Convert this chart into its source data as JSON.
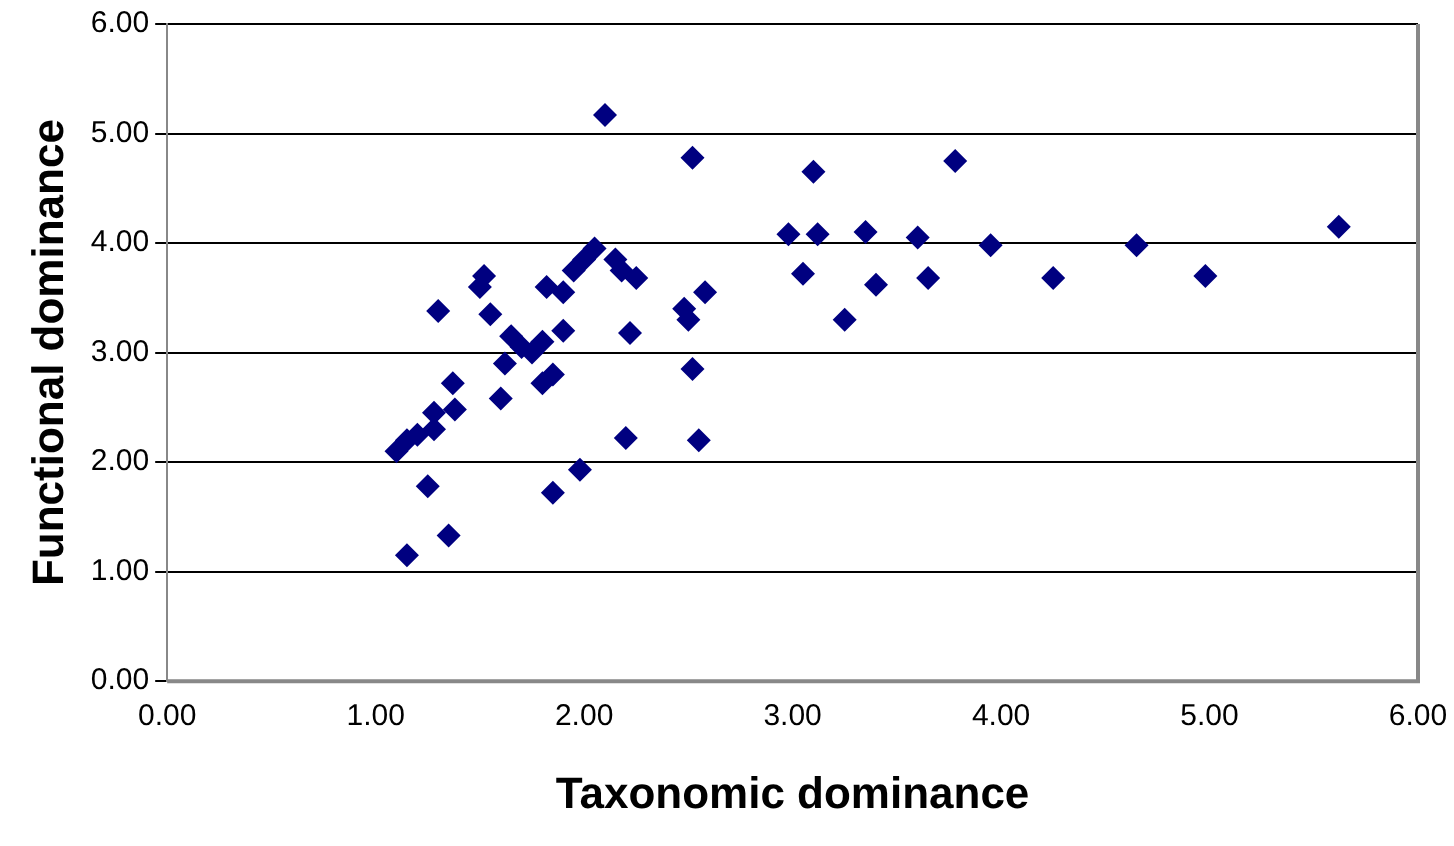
{
  "chart_data": {
    "type": "scatter",
    "xlabel": "Taxonomic dominance",
    "ylabel": "Functional dominance",
    "xlim": [
      0,
      6
    ],
    "ylim": [
      0,
      6
    ],
    "xticks": [
      {
        "value": 0,
        "label": "0.00"
      },
      {
        "value": 1,
        "label": "1.00"
      },
      {
        "value": 2,
        "label": "2.00"
      },
      {
        "value": 3,
        "label": "3.00"
      },
      {
        "value": 4,
        "label": "4.00"
      },
      {
        "value": 5,
        "label": "5.00"
      },
      {
        "value": 6,
        "label": "6.00"
      }
    ],
    "yticks": [
      {
        "value": 0,
        "label": "0.00"
      },
      {
        "value": 1,
        "label": "1.00"
      },
      {
        "value": 2,
        "label": "2.00"
      },
      {
        "value": 3,
        "label": "3.00"
      },
      {
        "value": 4,
        "label": "4.00"
      },
      {
        "value": 5,
        "label": "5.00"
      },
      {
        "value": 6,
        "label": "6.00"
      }
    ],
    "grid": "y",
    "legend": false,
    "marker": "diamond",
    "series": [
      {
        "color": "#000080",
        "x": [
          1.1,
          1.15,
          1.15,
          1.2,
          1.25,
          1.28,
          1.28,
          1.3,
          1.35,
          1.37,
          1.38,
          1.5,
          1.52,
          1.55,
          1.6,
          1.62,
          1.65,
          1.7,
          1.75,
          1.8,
          1.8,
          1.82,
          1.85,
          1.85,
          1.9,
          1.9,
          1.95,
          1.98,
          2.0,
          2.05,
          2.1,
          2.12,
          2.15,
          2.18,
          2.2,
          2.22,
          2.25,
          2.48,
          2.5,
          2.52,
          2.52,
          2.55,
          2.58,
          2.98,
          3.05,
          3.1,
          3.12,
          3.25,
          3.35,
          3.4,
          3.6,
          3.65,
          3.78,
          3.95,
          4.25,
          4.65,
          4.98,
          5.62
        ],
        "values": [
          2.1,
          1.15,
          2.2,
          2.25,
          1.78,
          2.45,
          2.3,
          3.38,
          1.33,
          2.72,
          2.48,
          3.6,
          3.7,
          3.35,
          2.58,
          2.9,
          3.15,
          3.05,
          3.0,
          3.1,
          2.72,
          3.6,
          1.72,
          2.8,
          3.55,
          3.2,
          3.75,
          1.93,
          3.85,
          3.95,
          5.17,
          null,
          3.85,
          3.75,
          2.22,
          3.18,
          3.68,
          3.4,
          3.3,
          2.85,
          4.78,
          2.2,
          3.55,
          4.08,
          3.72,
          4.65,
          4.08,
          3.3,
          4.1,
          3.62,
          4.05,
          3.68,
          4.75,
          3.98,
          3.68,
          3.98,
          3.7,
          4.15
        ]
      }
    ]
  }
}
